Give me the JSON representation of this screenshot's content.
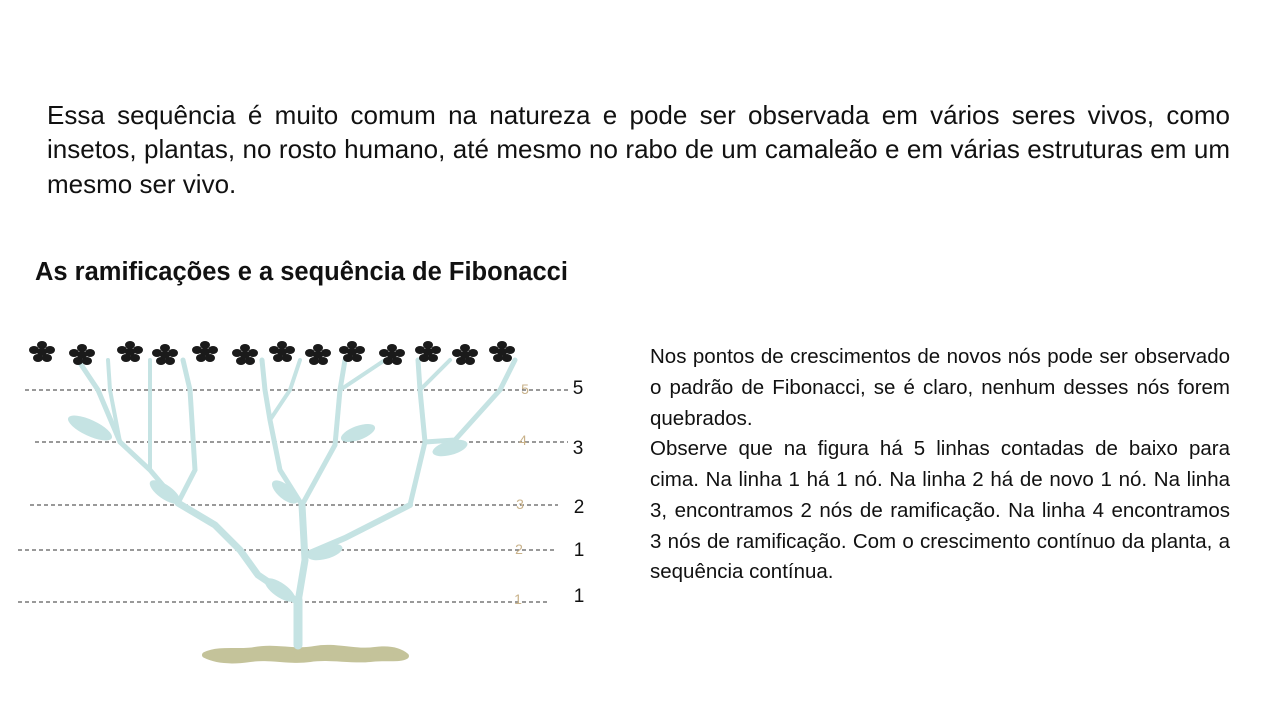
{
  "intro": {
    "text": "Essa sequência é muito comum na natureza e pode ser observada em vários seres vivos, como insetos, plantas, no rosto humano, até mesmo no rabo de um camaleão e em várias estruturas em um mesmo ser vivo."
  },
  "section": {
    "title": "As ramificações e a sequência de Fibonacci"
  },
  "figure": {
    "lines": [
      {
        "line_label": "5",
        "count": "5"
      },
      {
        "line_label": "4",
        "count": "3"
      },
      {
        "line_label": "3",
        "count": "2"
      },
      {
        "line_label": "2",
        "count": "1"
      },
      {
        "line_label": "1",
        "count": "1"
      }
    ],
    "colors": {
      "branch": "#c5e3e3",
      "leaf": "#c5e3e3",
      "ground": "#c4c39a",
      "flower": "#1a1a1a",
      "line_label": "#c9b28a",
      "dashed_line": "#333333"
    }
  },
  "description": {
    "paragraphs": [
      "Nos pontos de crescimentos de novos nós pode ser observado o padrão de Fibonacci, se é claro, nenhum desses nós forem quebrados.",
      "Observe que na figura há 5 linhas contadas de baixo para cima. Na linha 1 há 1 nó. Na linha 2 há de novo 1 nó. Na linha 3, encontramos 2 nós de ramificação. Na linha 4 encontramos 3 nós de ramificação. Com o crescimento contínuo da planta, a sequência contínua."
    ]
  }
}
